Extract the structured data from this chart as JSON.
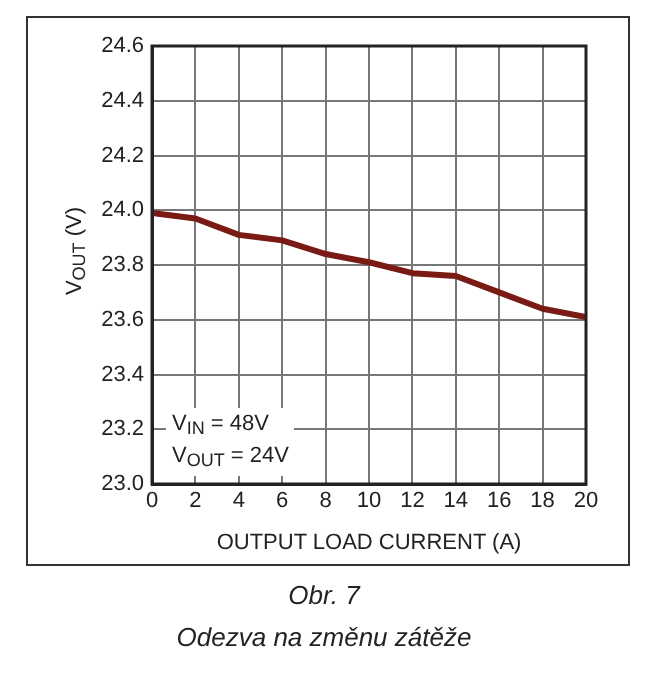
{
  "chart_data": {
    "type": "line",
    "title": "Obr. 7",
    "subtitle": "Odezva na změnu zátěže",
    "xlabel": "OUTPUT LOAD CURRENT (A)",
    "ylabel": "V$_{OUT}$ (V)",
    "annotations": [
      "V$_{IN}$ = 48V",
      "V$_{OUT}$ = 24V"
    ],
    "x": [
      0,
      2,
      4,
      6,
      8,
      10,
      12,
      14,
      16,
      18,
      20
    ],
    "series": [
      {
        "color": "#7a1a14",
        "values": [
          23.99,
          23.97,
          23.91,
          23.89,
          23.84,
          23.81,
          23.77,
          23.76,
          23.7,
          23.64,
          23.61
        ]
      }
    ],
    "xlim": [
      0,
      20
    ],
    "xticks": [
      0,
      2,
      4,
      6,
      8,
      10,
      12,
      14,
      16,
      18,
      20
    ],
    "ylim": [
      23.0,
      24.6
    ],
    "yticks": [
      {
        "value": 23.0,
        "label": "23.0"
      },
      {
        "value": 23.2,
        "label": "23.2"
      },
      {
        "value": 23.4,
        "label": "23.4"
      },
      {
        "value": 23.6,
        "label": "23.6"
      },
      {
        "value": 23.8,
        "label": "23.8"
      },
      {
        "value": 24.0,
        "label": "24.0"
      },
      {
        "value": 24.2,
        "label": "24.2"
      },
      {
        "value": 24.4,
        "label": "24.4"
      },
      {
        "value": 24.6,
        "label": "24.6"
      }
    ],
    "grid": true,
    "legend": false,
    "marker": "none",
    "line_style": "solid"
  }
}
